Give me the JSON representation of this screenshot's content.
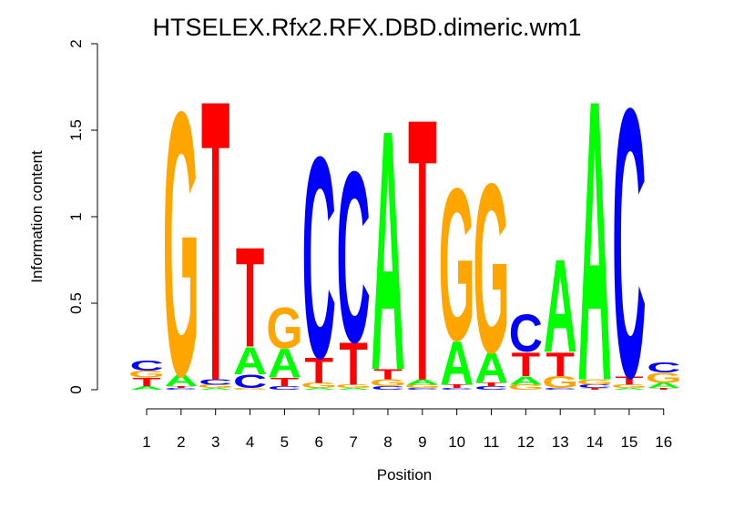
{
  "chart_data": {
    "type": "sequence-logo",
    "title": "HTSELEX.Rfx2.RFX.DBD.dimeric.wm1",
    "xlabel": "Position",
    "ylabel": "Information content",
    "ylim": [
      0,
      2
    ],
    "yticks": [
      {
        "value": 0,
        "label": "0"
      },
      {
        "value": 0.5,
        "label": "0.5"
      },
      {
        "value": 1,
        "label": "1"
      },
      {
        "value": 1.5,
        "label": "1.5"
      },
      {
        "value": 2,
        "label": "2"
      }
    ],
    "colors": {
      "A": "#00ff00",
      "C": "#0000ff",
      "G": "#ffa500",
      "T": "#ff0000"
    },
    "positions": [
      {
        "label": "1",
        "stack": [
          {
            "base": "A",
            "height": 0.02
          },
          {
            "base": "T",
            "height": 0.05
          },
          {
            "base": "G",
            "height": 0.04
          },
          {
            "base": "C",
            "height": 0.06
          }
        ]
      },
      {
        "label": "2",
        "stack": [
          {
            "base": "C",
            "height": 0.01
          },
          {
            "base": "T",
            "height": 0.01
          },
          {
            "base": "A",
            "height": 0.07
          },
          {
            "base": "G",
            "height": 1.56
          }
        ]
      },
      {
        "label": "3",
        "stack": [
          {
            "base": "A",
            "height": 0.01
          },
          {
            "base": "G",
            "height": 0.02
          },
          {
            "base": "C",
            "height": 0.03
          },
          {
            "base": "T",
            "height": 1.66
          }
        ]
      },
      {
        "label": "4",
        "stack": [
          {
            "base": "G",
            "height": 0.01
          },
          {
            "base": "C",
            "height": 0.08
          },
          {
            "base": "A",
            "height": 0.16
          },
          {
            "base": "T",
            "height": 0.59
          }
        ]
      },
      {
        "label": "5",
        "stack": [
          {
            "base": "C",
            "height": 0.02
          },
          {
            "base": "T",
            "height": 0.05
          },
          {
            "base": "A",
            "height": 0.17
          },
          {
            "base": "G",
            "height": 0.24
          }
        ]
      },
      {
        "label": "6",
        "stack": [
          {
            "base": "A",
            "height": 0.01
          },
          {
            "base": "G",
            "height": 0.03
          },
          {
            "base": "T",
            "height": 0.15
          },
          {
            "base": "C",
            "height": 1.19
          }
        ]
      },
      {
        "label": "7",
        "stack": [
          {
            "base": "A",
            "height": 0.01
          },
          {
            "base": "G",
            "height": 0.02
          },
          {
            "base": "T",
            "height": 0.25
          },
          {
            "base": "C",
            "height": 1.01
          }
        ]
      },
      {
        "label": "8",
        "stack": [
          {
            "base": "C",
            "height": 0.02
          },
          {
            "base": "G",
            "height": 0.04
          },
          {
            "base": "T",
            "height": 0.06
          },
          {
            "base": "A",
            "height": 1.42
          }
        ]
      },
      {
        "label": "9",
        "stack": [
          {
            "base": "C",
            "height": 0.01
          },
          {
            "base": "G",
            "height": 0.02
          },
          {
            "base": "A",
            "height": 0.03
          },
          {
            "base": "T",
            "height": 1.55
          }
        ]
      },
      {
        "label": "10",
        "stack": [
          {
            "base": "C",
            "height": 0.01
          },
          {
            "base": "T",
            "height": 0.02
          },
          {
            "base": "A",
            "height": 0.26
          },
          {
            "base": "G",
            "height": 0.9
          }
        ]
      },
      {
        "label": "11",
        "stack": [
          {
            "base": "C",
            "height": 0.02
          },
          {
            "base": "T",
            "height": 0.02
          },
          {
            "base": "A",
            "height": 0.18
          },
          {
            "base": "G",
            "height": 1.0
          }
        ]
      },
      {
        "label": "12",
        "stack": [
          {
            "base": "G",
            "height": 0.03
          },
          {
            "base": "A",
            "height": 0.05
          },
          {
            "base": "T",
            "height": 0.14
          },
          {
            "base": "C",
            "height": 0.22
          }
        ]
      },
      {
        "label": "13",
        "stack": [
          {
            "base": "C",
            "height": 0.01
          },
          {
            "base": "G",
            "height": 0.07
          },
          {
            "base": "T",
            "height": 0.14
          },
          {
            "base": "A",
            "height": 0.55
          }
        ]
      },
      {
        "label": "14",
        "stack": [
          {
            "base": "T",
            "height": 0.01
          },
          {
            "base": "C",
            "height": 0.02
          },
          {
            "base": "G",
            "height": 0.03
          },
          {
            "base": "A",
            "height": 1.66
          }
        ]
      },
      {
        "label": "15",
        "stack": [
          {
            "base": "A",
            "height": 0.01
          },
          {
            "base": "G",
            "height": 0.02
          },
          {
            "base": "T",
            "height": 0.05
          },
          {
            "base": "C",
            "height": 1.59
          }
        ]
      },
      {
        "label": "16",
        "stack": [
          {
            "base": "T",
            "height": 0.01
          },
          {
            "base": "A",
            "height": 0.03
          },
          {
            "base": "G",
            "height": 0.06
          },
          {
            "base": "C",
            "height": 0.06
          }
        ]
      }
    ]
  }
}
